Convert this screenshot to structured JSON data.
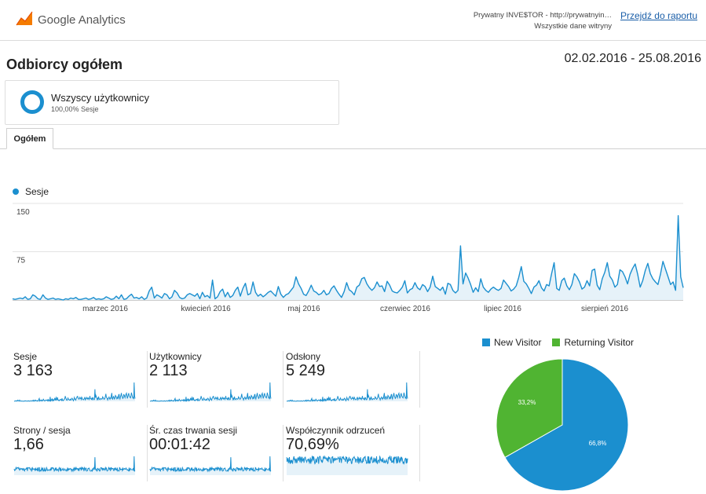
{
  "header": {
    "logo_text": "Google Analytics",
    "site_name": "Prywatny INVE$TOR - http://prywatnyin…",
    "site_view": "Wszystkie dane witryny",
    "report_link": "Przejdź do raportu"
  },
  "page": {
    "title": "Odbiorcy ogółem",
    "date_range": "02.02.2016 - 25.08.2016"
  },
  "segment": {
    "name": "Wszyscy użytkownicy",
    "sub": "100,00% Sesje"
  },
  "tabs": [
    {
      "label": "Ogółem"
    }
  ],
  "chart_data": {
    "type": "area",
    "series_name": "Sesje",
    "ylim": [
      0,
      150
    ],
    "yticks": [
      "150",
      "75"
    ],
    "xlabels": [
      "marzec 2016",
      "kwiecień 2016",
      "maj 2016",
      "czerwiec 2016",
      "lipiec 2016",
      "sierpień 2016"
    ],
    "color": "#1b8fcf",
    "values": [
      2,
      1,
      2,
      3,
      2,
      5,
      1,
      2,
      8,
      6,
      2,
      1,
      8,
      3,
      1,
      2,
      3,
      1,
      2,
      1,
      0,
      2,
      1,
      3,
      2,
      4,
      1,
      1,
      2,
      3,
      1,
      2,
      4,
      1,
      2,
      1,
      2,
      5,
      3,
      1,
      2,
      6,
      2,
      8,
      1,
      2,
      6,
      9,
      3,
      4,
      2,
      5,
      1,
      3,
      14,
      20,
      3,
      8,
      6,
      3,
      10,
      8,
      2,
      5,
      15,
      11,
      4,
      2,
      3,
      8,
      10,
      8,
      6,
      10,
      2,
      12,
      5,
      7,
      3,
      31,
      2,
      5,
      13,
      17,
      5,
      12,
      4,
      7,
      15,
      20,
      6,
      18,
      26,
      8,
      10,
      28,
      12,
      6,
      9,
      5,
      8,
      12,
      14,
      10,
      6,
      21,
      9,
      4,
      8,
      10,
      15,
      20,
      36,
      25,
      18,
      9,
      7,
      14,
      23,
      14,
      12,
      8,
      10,
      15,
      8,
      10,
      18,
      22,
      15,
      9,
      4,
      13,
      27,
      16,
      13,
      8,
      20,
      23,
      33,
      35,
      25,
      19,
      15,
      19,
      28,
      21,
      22,
      13,
      29,
      23,
      14,
      12,
      11,
      15,
      20,
      30,
      11,
      16,
      18,
      27,
      19,
      16,
      24,
      21,
      13,
      20,
      37,
      21,
      18,
      15,
      20,
      9,
      26,
      24,
      15,
      11,
      15,
      84,
      25,
      42,
      34,
      24,
      12,
      19,
      13,
      33,
      20,
      15,
      12,
      17,
      20,
      17,
      15,
      18,
      31,
      26,
      21,
      14,
      17,
      22,
      35,
      52,
      29,
      25,
      18,
      10,
      20,
      23,
      30,
      19,
      14,
      24,
      22,
      41,
      58,
      18,
      15,
      30,
      34,
      22,
      16,
      24,
      41,
      36,
      28,
      17,
      20,
      30,
      22,
      46,
      48,
      23,
      16,
      33,
      43,
      58,
      37,
      31,
      20,
      24,
      47,
      44,
      36,
      25,
      40,
      49,
      56,
      40,
      20,
      30,
      46,
      57,
      41,
      33,
      28,
      24,
      40,
      60,
      48,
      36,
      24,
      28,
      15,
      131,
      36,
      19
    ]
  },
  "metrics": [
    {
      "label": "Sesje",
      "value": "3 163"
    },
    {
      "label": "Użytkownicy",
      "value": "2 113"
    },
    {
      "label": "Odsłony",
      "value": "5 249"
    },
    {
      "label": "Strony / sesja",
      "value": "1,66"
    },
    {
      "label": "Śr. czas trwania sesji",
      "value": "00:01:42"
    },
    {
      "label": "Współczynnik odrzuceń",
      "value": "70,69%"
    }
  ],
  "pie_chart": {
    "type": "pie",
    "slices": [
      {
        "name": "New Visitor",
        "value": 66.8,
        "label": "66,8%",
        "color": "#1b8fcf"
      },
      {
        "name": "Returning Visitor",
        "value": 33.2,
        "label": "33,2%",
        "color": "#50b432"
      }
    ]
  }
}
